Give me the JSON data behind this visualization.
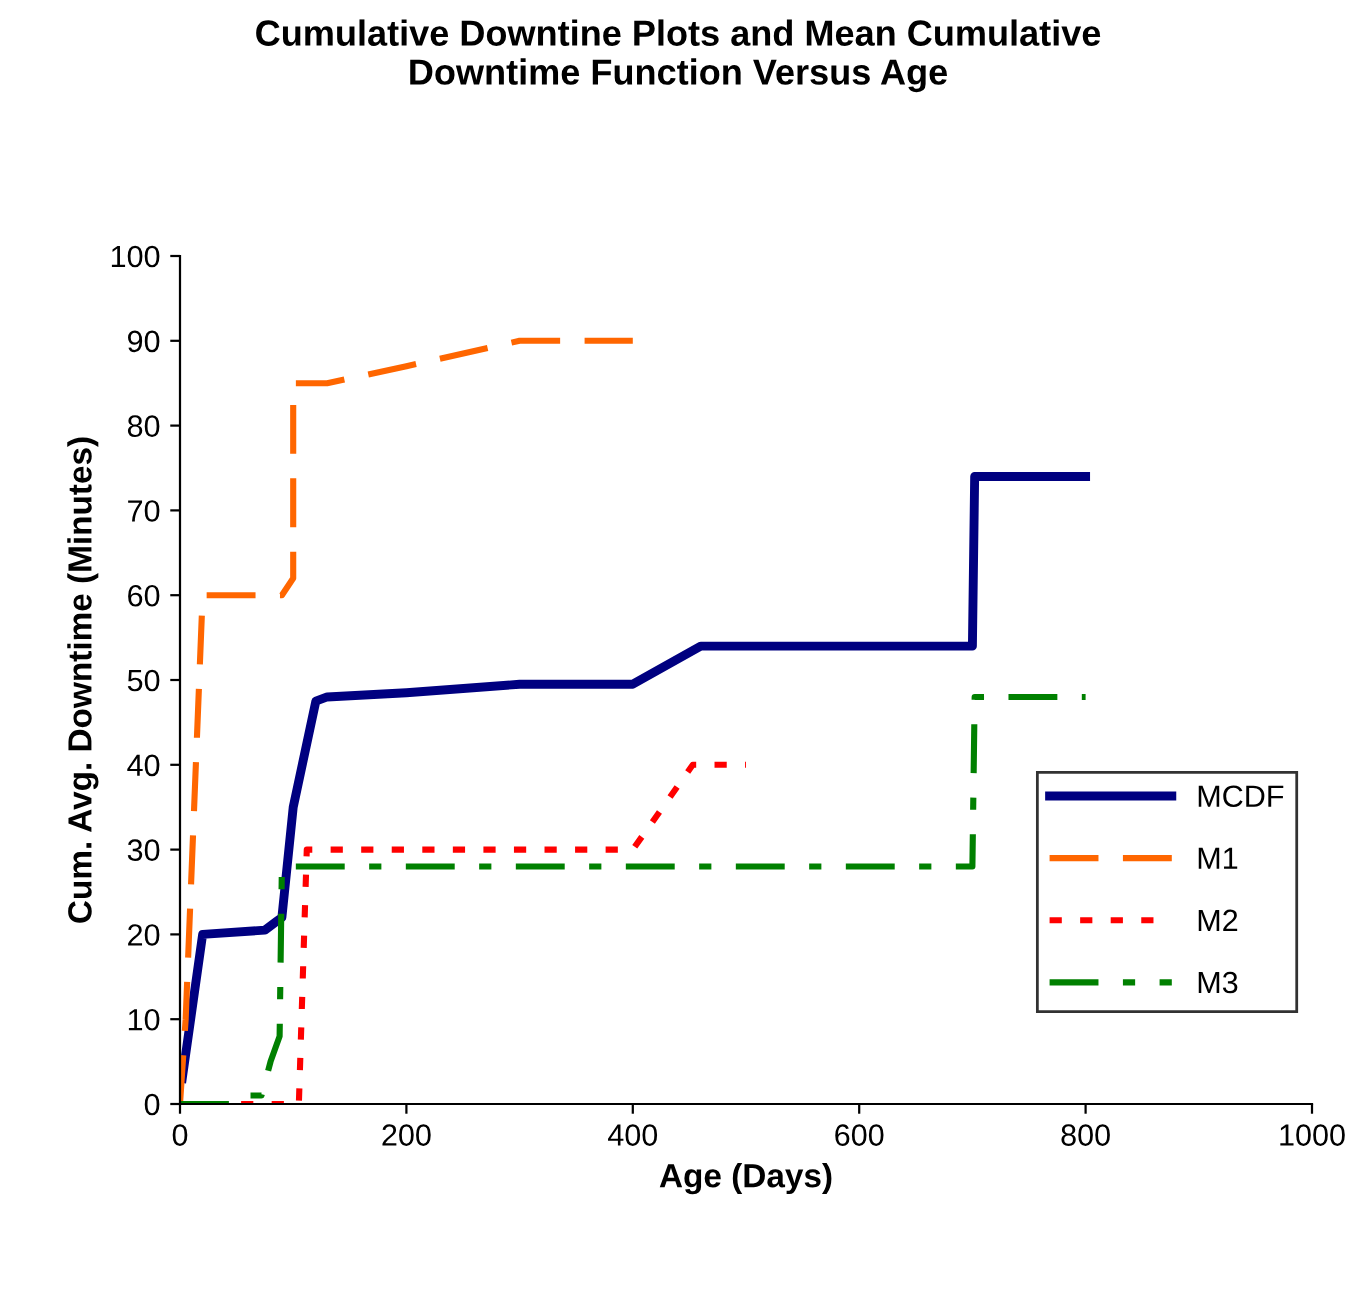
{
  "chart_data": {
    "type": "line",
    "title": "Cumulative Downtine Plots and Mean Cumulative\nDowntime Function Versus Age",
    "xlabel": "Age (Days)",
    "ylabel": "Cum. Avg. Downtime (Minutes)",
    "xlim": [
      0,
      1000
    ],
    "ylim": [
      0,
      100
    ],
    "xticks": [
      0,
      200,
      400,
      600,
      800,
      1000
    ],
    "yticks": [
      0,
      10,
      20,
      30,
      40,
      50,
      60,
      70,
      80,
      90,
      100
    ],
    "grid": false,
    "legend": "right",
    "marker": "none",
    "series": [
      {
        "name": "MCDF",
        "color": "#000080",
        "line_style": "solid",
        "x": [
          2,
          20,
          75,
          85,
          90,
          100,
          120,
          130,
          200,
          300,
          400,
          460,
          700,
          702,
          800
        ],
        "values": [
          3,
          20,
          20.5,
          21.5,
          22,
          35,
          47.5,
          48,
          48.5,
          49.5,
          49.5,
          54,
          54,
          74,
          74
        ]
      },
      {
        "name": "M1",
        "color": "#ff6600",
        "line_style": "dashed",
        "x": [
          0,
          5,
          20,
          90,
          100,
          100,
          130,
          200,
          300,
          400
        ],
        "values": [
          0,
          10,
          60,
          60,
          62,
          85,
          85,
          87,
          90,
          90
        ]
      },
      {
        "name": "M2",
        "color": "#ff0000",
        "line_style": "dotted",
        "x": [
          0,
          105,
          112,
          400,
          453,
          500
        ],
        "values": [
          0,
          0,
          30,
          30,
          40,
          40
        ]
      },
      {
        "name": "M3",
        "color": "#008000",
        "line_style": "dashdot",
        "x": [
          0,
          50,
          60,
          72,
          80,
          88,
          90,
          700,
          702,
          800
        ],
        "values": [
          0,
          0,
          1,
          1,
          5,
          8,
          28,
          28,
          48,
          48
        ]
      }
    ]
  }
}
